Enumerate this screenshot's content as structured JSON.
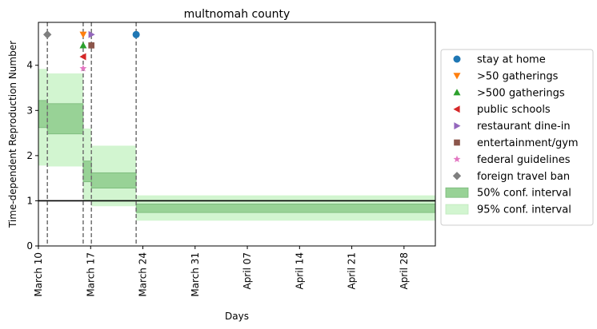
{
  "chart_data": {
    "type": "step-area",
    "title": "multnomah county",
    "xlabel": "Days",
    "ylabel": "Time-dependent Reproduction Number",
    "x_ticks": [
      {
        "day": 10,
        "label": "March 10"
      },
      {
        "day": 17,
        "label": "March 17"
      },
      {
        "day": 24,
        "label": "March 24"
      },
      {
        "day": 31,
        "label": "March 31"
      },
      {
        "day": 38,
        "label": "April 07"
      },
      {
        "day": 45,
        "label": "April 14"
      },
      {
        "day": 52,
        "label": "April 21"
      },
      {
        "day": 59,
        "label": "April 28"
      }
    ],
    "x_axis_origin": "March 0 (day index; March 10 = 10)",
    "xlim": [
      10,
      63.2
    ],
    "ylim": [
      0,
      4.95
    ],
    "y_ticks": [
      0,
      1,
      2,
      3,
      4
    ],
    "reference_line_y": 1.0,
    "intervention_lines": [
      11.2,
      16.0,
      17.1,
      23.1
    ],
    "intervals": {
      "segments": [
        {
          "start": 10.0,
          "end": 11.2,
          "ci50": [
            2.62,
            3.22
          ],
          "ci95": [
            1.78,
            3.92
          ]
        },
        {
          "start": 11.2,
          "end": 16.0,
          "ci50": [
            2.48,
            3.15
          ],
          "ci95": [
            1.76,
            3.82
          ]
        },
        {
          "start": 16.0,
          "end": 17.1,
          "ci50": [
            1.42,
            1.88
          ],
          "ci95": [
            1.0,
            2.6
          ]
        },
        {
          "start": 17.1,
          "end": 23.1,
          "ci50": [
            1.28,
            1.62
          ],
          "ci95": [
            0.88,
            2.22
          ]
        },
        {
          "start": 23.1,
          "end": 63.2,
          "ci50": [
            0.74,
            0.93
          ],
          "ci95": [
            0.56,
            1.12
          ]
        }
      ],
      "ci50_color": "#98d296",
      "ci95_color": "#d2f5d0",
      "ci50_edge": "#78b878"
    },
    "markers": [
      {
        "name": "stay at home",
        "x": 23.1,
        "y": 4.68,
        "shape": "circle",
        "color": "#1f77b4"
      },
      {
        "name": ">50 gatherings",
        "x": 16.0,
        "y": 4.68,
        "shape": "triangle-down",
        "color": "#ff7f0e"
      },
      {
        "name": ">500 gatherings",
        "x": 16.0,
        "y": 4.44,
        "shape": "triangle-up",
        "color": "#2ca02c"
      },
      {
        "name": "public schools",
        "x": 16.0,
        "y": 4.19,
        "shape": "triangle-left",
        "color": "#d62728"
      },
      {
        "name": "restaurant dine-in",
        "x": 17.1,
        "y": 4.68,
        "shape": "triangle-right",
        "color": "#9467bd"
      },
      {
        "name": "entertainment/gym",
        "x": 17.1,
        "y": 4.44,
        "shape": "square",
        "color": "#8c564b"
      },
      {
        "name": "federal guidelines",
        "x": 16.0,
        "y": 3.93,
        "shape": "star",
        "color": "#e377c2"
      },
      {
        "name": "foreign travel ban",
        "x": 11.2,
        "y": 4.68,
        "shape": "diamond",
        "color": "#7f7f7f"
      }
    ],
    "legend": {
      "placement": "right, outside plot",
      "entries": [
        {
          "label": "stay at home",
          "shape": "circle",
          "color": "#1f77b4"
        },
        {
          "label": ">50 gatherings",
          "shape": "triangle-down",
          "color": "#ff7f0e"
        },
        {
          "label": ">500 gatherings",
          "shape": "triangle-up",
          "color": "#2ca02c"
        },
        {
          "label": "public schools",
          "shape": "triangle-left",
          "color": "#d62728"
        },
        {
          "label": "restaurant dine-in",
          "shape": "triangle-right",
          "color": "#9467bd"
        },
        {
          "label": "entertainment/gym",
          "shape": "square",
          "color": "#8c564b"
        },
        {
          "label": "federal guidelines",
          "shape": "star",
          "color": "#e377c2"
        },
        {
          "label": "foreign travel ban",
          "shape": "diamond",
          "color": "#7f7f7f"
        },
        {
          "label": "50% conf. interval",
          "shape": "patch",
          "color": "#98d296"
        },
        {
          "label": "95% conf. interval",
          "shape": "patch",
          "color": "#d2f5d0"
        }
      ]
    },
    "grid": false
  }
}
